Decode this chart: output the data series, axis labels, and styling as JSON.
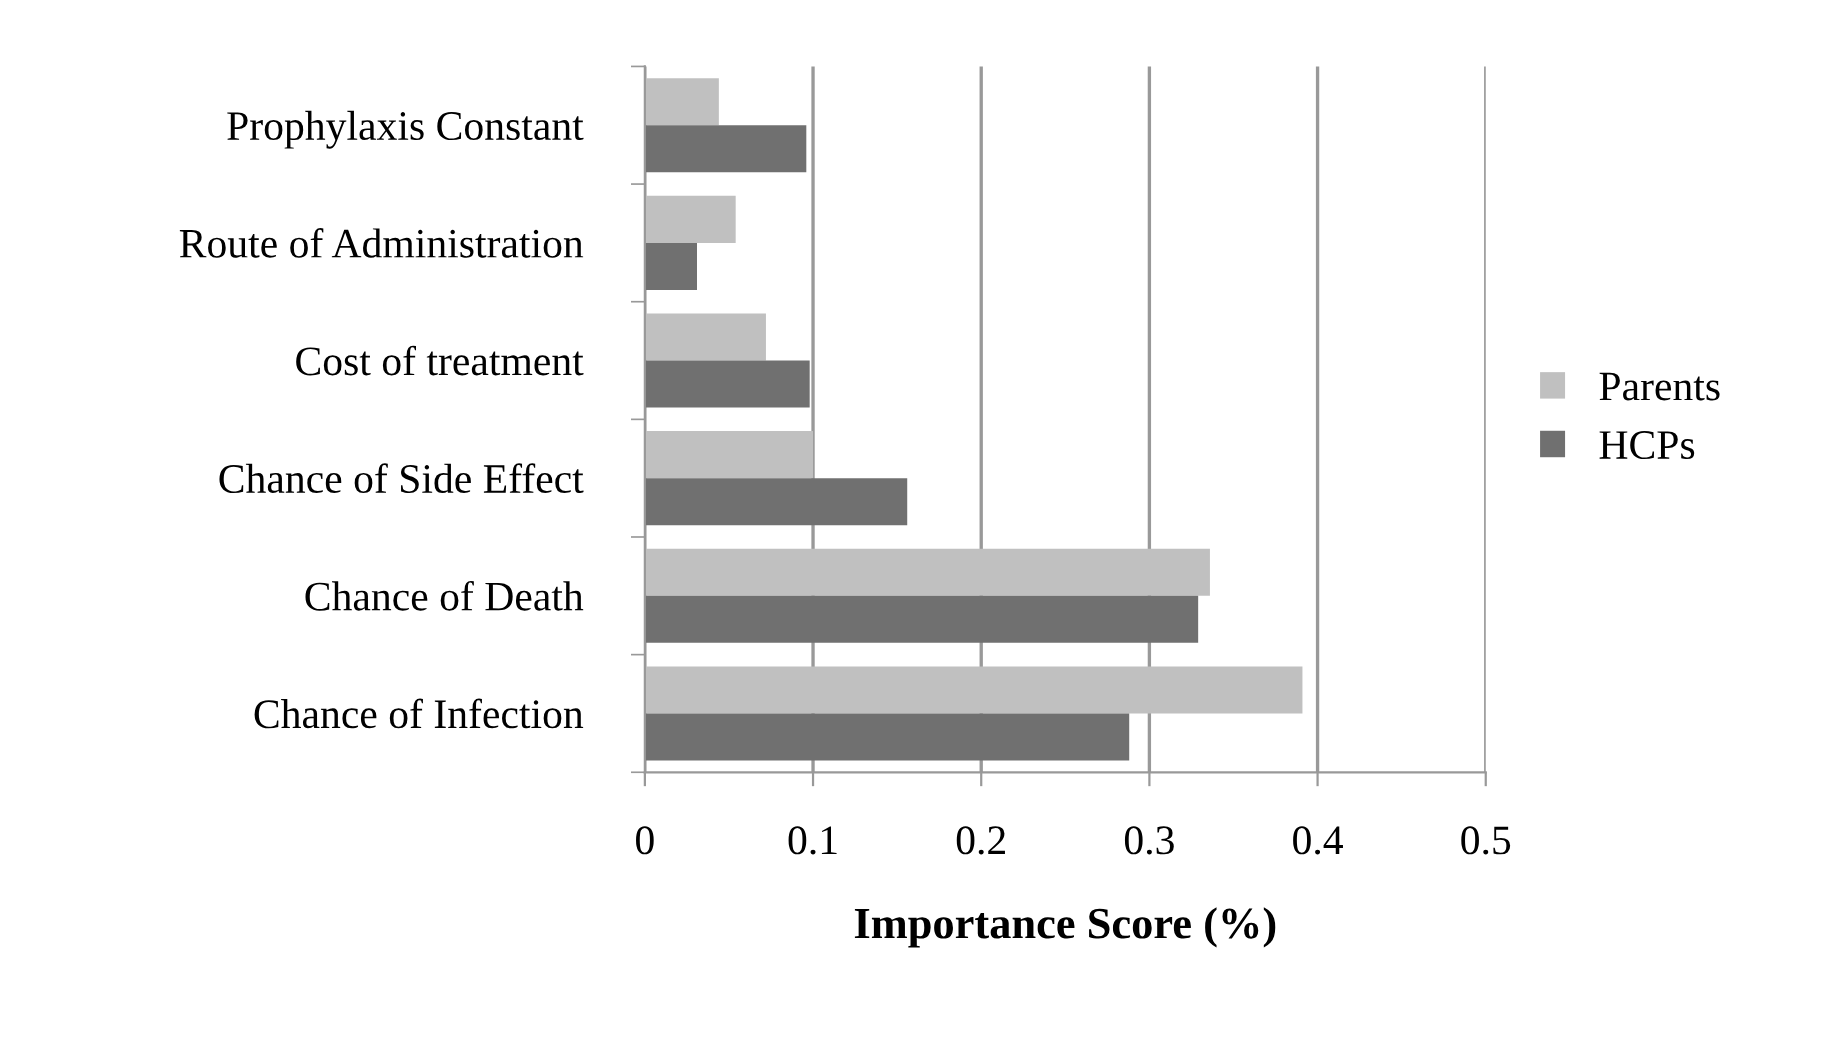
{
  "chart_data": {
    "type": "bar",
    "orientation": "horizontal",
    "xlabel": "Importance Score (%)",
    "categories": [
      "Prophylaxis Constant",
      "Route of Administration",
      "Cost of treatment",
      "Chance of Side Effect",
      "Chance of Death",
      "Chance of Infection"
    ],
    "series": [
      {
        "name": "Parents",
        "color": "#c0c0c0",
        "values": [
          0.044,
          0.054,
          0.072,
          0.1,
          0.336,
          0.391
        ]
      },
      {
        "name": "HCPs",
        "color": "#707070",
        "values": [
          0.096,
          0.031,
          0.098,
          0.156,
          0.329,
          0.288
        ]
      }
    ],
    "xlim": [
      0,
      0.5
    ],
    "xticks": [
      0,
      0.1,
      0.2,
      0.3,
      0.4,
      0.5
    ],
    "grid": "x",
    "legend": "right"
  }
}
